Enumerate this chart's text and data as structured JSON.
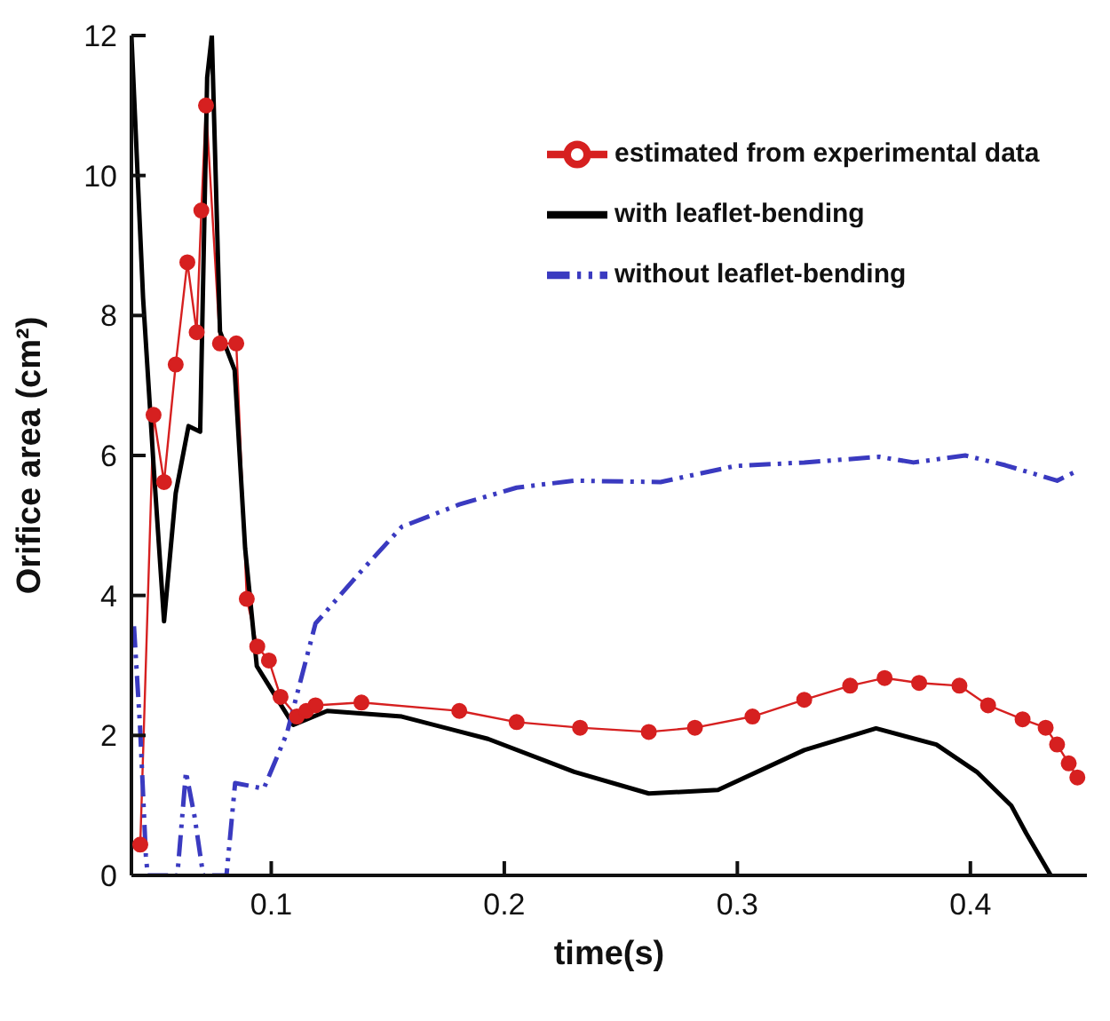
{
  "chart_data": {
    "type": "line",
    "xlabel": "time(s)",
    "ylabel": "Orifice area (cm²)",
    "xlim": [
      0.04,
      0.45
    ],
    "xticks": [
      0.1,
      0.2,
      0.3,
      0.4
    ],
    "ylim": [
      0,
      12
    ],
    "yticks": [
      0,
      2,
      4,
      6,
      8,
      10,
      12
    ],
    "grid": false,
    "legend": "top right",
    "series": [
      {
        "name": "estimated from experimental data",
        "color": "#d62020",
        "marker": "circle",
        "line_style": "solid",
        "x": [
          0.0438,
          0.0495,
          0.054,
          0.059,
          0.064,
          0.068,
          0.07,
          0.072,
          0.078,
          0.085,
          0.0895,
          0.094,
          0.099,
          0.104,
          0.111,
          0.115,
          0.119,
          0.1387,
          0.1807,
          0.2053,
          0.2325,
          0.262,
          0.2818,
          0.3065,
          0.3287,
          0.3484,
          0.3632,
          0.378,
          0.3953,
          0.4076,
          0.4224,
          0.4323,
          0.4372,
          0.4422,
          0.4459
        ],
        "values": [
          0.44,
          6.58,
          5.62,
          7.3,
          8.76,
          7.76,
          9.5,
          11.0,
          7.6,
          7.6,
          3.95,
          3.27,
          3.07,
          2.55,
          2.27,
          2.35,
          2.43,
          2.47,
          2.35,
          2.19,
          2.11,
          2.05,
          2.11,
          2.27,
          2.51,
          2.71,
          2.82,
          2.75,
          2.71,
          2.43,
          2.23,
          2.11,
          1.87,
          1.6,
          1.4
        ]
      },
      {
        "name": "with leaflet-bending",
        "color": "#000000",
        "marker": "none",
        "line_style": "solid",
        "x": [
          0.04,
          0.045,
          0.0495,
          0.054,
          0.059,
          0.0645,
          0.0695,
          0.0725,
          0.0745,
          0.078,
          0.0843,
          0.0888,
          0.0938,
          0.1013,
          0.1095,
          0.124,
          0.156,
          0.193,
          0.23,
          0.262,
          0.2917,
          0.3287,
          0.3595,
          0.3854,
          0.4027,
          0.4175,
          0.424,
          0.4345
        ],
        "values": [
          12,
          8.25,
          5.86,
          3.63,
          5.46,
          6.42,
          6.34,
          11.4,
          12,
          7.77,
          7.22,
          4.67,
          2.99,
          2.59,
          2.15,
          2.35,
          2.27,
          1.95,
          1.48,
          1.17,
          1.22,
          1.79,
          2.1,
          1.87,
          1.48,
          1.0,
          0.6,
          0
        ]
      },
      {
        "name": "without leaflet-bending",
        "color": "#3a3ac0",
        "marker": "none",
        "line_style": "dashed",
        "x": [
          0.0411,
          0.0437,
          0.0462,
          0.047,
          0.0597,
          0.0634,
          0.0671,
          0.0708,
          0.0808,
          0.0845,
          0.0968,
          0.1067,
          0.119,
          0.1387,
          0.156,
          0.1807,
          0.2053,
          0.23,
          0.267,
          0.2991,
          0.3287,
          0.3608,
          0.3756,
          0.3978,
          0.415,
          0.4372,
          0.4459
        ],
        "values": [
          3.56,
          2.12,
          0.28,
          0,
          0,
          1.48,
          0.84,
          0,
          0,
          1.32,
          1.24,
          2.03,
          3.6,
          4.35,
          4.98,
          5.3,
          5.54,
          5.64,
          5.62,
          5.85,
          5.9,
          5.98,
          5.9,
          6.0,
          5.86,
          5.64,
          5.78
        ]
      }
    ]
  }
}
